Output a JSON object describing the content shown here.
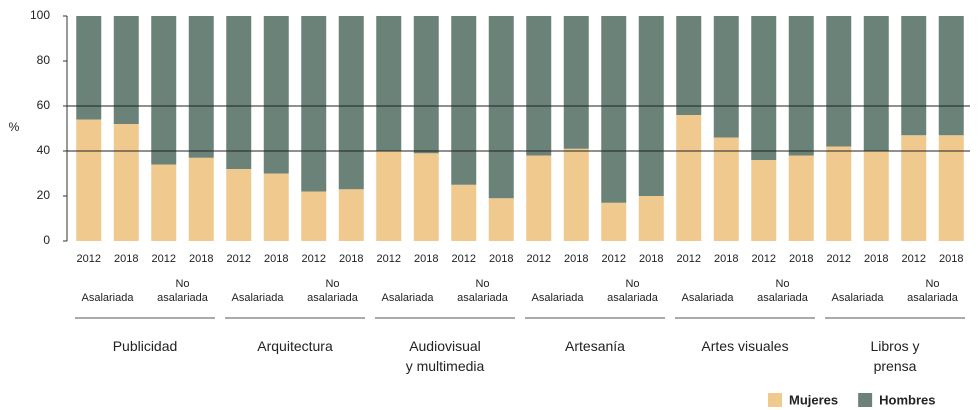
{
  "chart_data": {
    "type": "stacked_bar",
    "y_label": "%",
    "categories": [
      "2012",
      "2018",
      "2012",
      "2018",
      "2012",
      "2018",
      "2012",
      "2018",
      "2012",
      "2018",
      "2012",
      "2018",
      "2012",
      "2018",
      "2012",
      "2018",
      "2012",
      "2018",
      "2012",
      "2018",
      "2012",
      "2018",
      "2012",
      "2018"
    ],
    "groups": [
      {
        "name": "Publicidad",
        "subgroups": [
          "Asalariada",
          "No\nasalariada"
        ]
      },
      {
        "name": "Arquitectura",
        "subgroups": [
          "Asalariada",
          "No\nasalariada"
        ]
      },
      {
        "name": "Audiovisual\ny multimedia",
        "subgroups": [
          "Asalariada",
          "No\nasalariada"
        ]
      },
      {
        "name": "Artesanía",
        "subgroups": [
          "Asalariada",
          "No\nasalariada"
        ]
      },
      {
        "name": "Artes visuales",
        "subgroups": [
          "Asalariada",
          "No\nasalariada"
        ]
      },
      {
        "name": "Libros y prensa",
        "subgroups": [
          "Asalariada",
          "No\nasalariada"
        ]
      }
    ],
    "series": [
      {
        "name": "Mujeres",
        "color": "#f0c98e",
        "values": [
          54,
          52,
          34,
          37,
          32,
          30,
          22,
          23,
          40,
          39,
          25,
          19,
          38,
          41,
          17,
          20,
          56,
          46,
          36,
          38,
          42,
          40,
          47,
          47
        ]
      },
      {
        "name": "Hombres",
        "color": "#6b8279",
        "values": [
          46,
          48,
          66,
          63,
          68,
          70,
          78,
          77,
          60,
          61,
          75,
          81,
          62,
          59,
          83,
          80,
          44,
          54,
          64,
          62,
          58,
          60,
          53,
          53
        ]
      }
    ],
    "ylim": [
      0,
      100
    ],
    "yticks": [
      0,
      20,
      40,
      60,
      80,
      100
    ],
    "reference_lines": [
      40,
      60
    ],
    "legend": "bottom-right"
  }
}
